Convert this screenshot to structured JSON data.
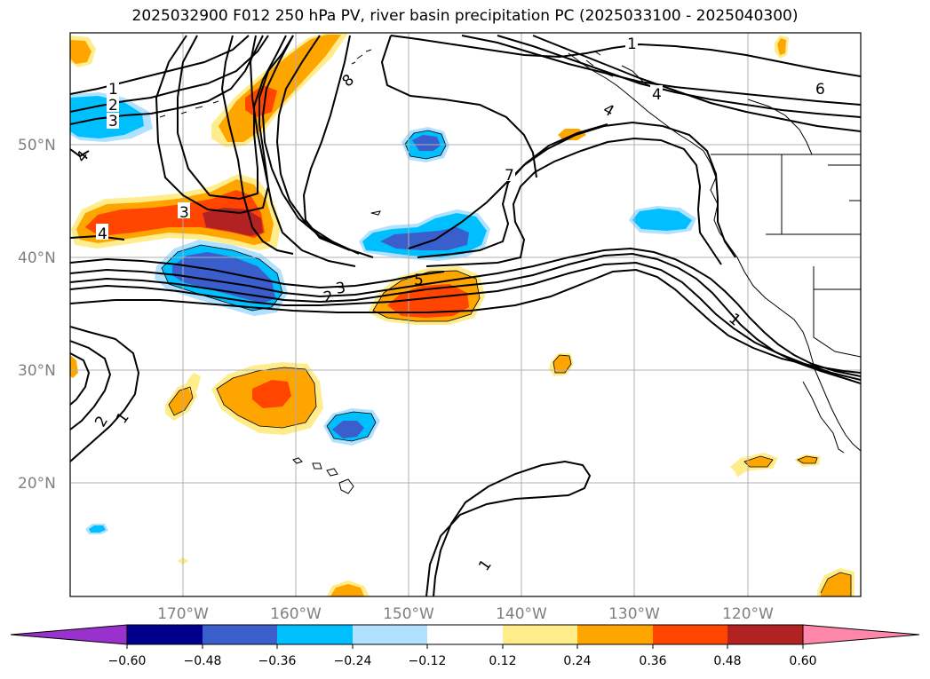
{
  "title": "2025032900 F012 250 hPa PV, river basin precipitation PC (2025033100 - 2025040300)",
  "map": {
    "lon_labels": [
      "170°W",
      "160°W",
      "150°W",
      "140°W",
      "130°W",
      "120°W"
    ],
    "lat_labels": [
      "50°N",
      "40°N",
      "30°N",
      "20°N"
    ],
    "contour_labels": [
      "1",
      "2",
      "3",
      "4",
      "8",
      "1",
      "4",
      "6",
      "4",
      "7",
      "5",
      "3",
      "2",
      "4",
      "1",
      "3",
      "2",
      "1",
      "1"
    ]
  },
  "colorbar": {
    "tick_labels": [
      "−0.60",
      "−0.48",
      "−0.36",
      "−0.24",
      "−0.12",
      "0.12",
      "0.24",
      "0.36",
      "0.48",
      "0.60"
    ],
    "colors": [
      "#9932cc",
      "#00008b",
      "#3a5fcd",
      "#00bfff",
      "#b0e2ff",
      "#ffffff",
      "#ffec8b",
      "#ffa500",
      "#ff4500",
      "#b22222",
      "#ff88aa"
    ]
  }
}
